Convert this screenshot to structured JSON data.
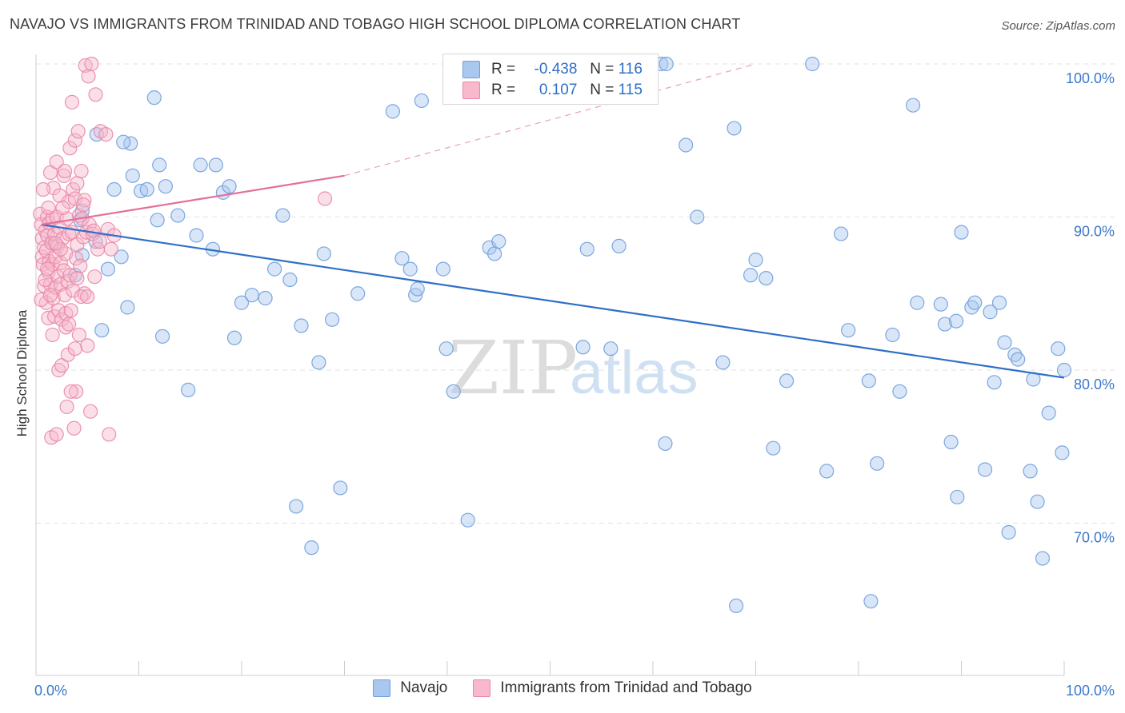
{
  "header": {
    "title": "NAVAJO VS IMMIGRANTS FROM TRINIDAD AND TOBAGO HIGH SCHOOL DIPLOMA CORRELATION CHART",
    "source": "Source: ZipAtlas.com"
  },
  "watermark": {
    "zip": "ZIP",
    "atlas": "atlas"
  },
  "legend": {
    "rows": [
      {
        "r_label": "R =",
        "r_value": "-0.438",
        "n_label": "N =",
        "n_value": "116",
        "color": "#a9c7ef",
        "border": "#6f9fdc"
      },
      {
        "r_label": "R =",
        "r_value": "0.107",
        "n_label": "N =",
        "n_value": "115",
        "color": "#f7b9cb",
        "border": "#e987a6"
      }
    ]
  },
  "bottom_legend": {
    "items": [
      "Navajo",
      "Immigrants from Trinidad and Tobago"
    ]
  },
  "chart_data": {
    "type": "scatter",
    "xlabel": "",
    "ylabel": "High School Diploma",
    "xlim": [
      0,
      100
    ],
    "ylim": [
      60.5,
      100.8
    ],
    "x_tick_labels": {
      "left": "0.0%",
      "right": "100.0%"
    },
    "y_ticks": [
      {
        "value": 100,
        "label": "100.0%"
      },
      {
        "value": 90,
        "label": "90.0%"
      },
      {
        "value": 80,
        "label": "80.0%"
      },
      {
        "value": 70,
        "label": "70.0%"
      }
    ],
    "grid": "horizontal-dashed",
    "series": [
      {
        "name": "Navajo",
        "color": "#6f9fdc",
        "fill": "#a9c7ef",
        "trend": {
          "x": [
            0.5,
            100
          ],
          "y": [
            89.5,
            79.5
          ],
          "color": "#2f6fc8"
        },
        "points": [
          [
            1.6,
            88.3
          ],
          [
            4.3,
            89.8
          ],
          [
            4.5,
            87.5
          ],
          [
            3.8,
            86.2
          ],
          [
            4.5,
            90.4
          ],
          [
            5.8,
            88.4
          ],
          [
            5.9,
            95.4
          ],
          [
            7.6,
            91.8
          ],
          [
            9.2,
            94.8
          ],
          [
            6.4,
            82.6
          ],
          [
            7.0,
            86.6
          ],
          [
            8.3,
            87.4
          ],
          [
            8.9,
            84.1
          ],
          [
            8.5,
            94.9
          ],
          [
            9.4,
            92.7
          ],
          [
            10.2,
            91.7
          ],
          [
            10.8,
            91.8
          ],
          [
            11.5,
            97.8
          ],
          [
            12.0,
            93.4
          ],
          [
            11.8,
            89.8
          ],
          [
            12.3,
            82.2
          ],
          [
            12.6,
            92.0
          ],
          [
            13.8,
            90.1
          ],
          [
            14.8,
            78.7
          ],
          [
            15.6,
            88.8
          ],
          [
            16.0,
            93.4
          ],
          [
            17.2,
            87.9
          ],
          [
            17.5,
            93.4
          ],
          [
            18.2,
            91.6
          ],
          [
            18.8,
            92.0
          ],
          [
            19.3,
            82.1
          ],
          [
            20.0,
            84.4
          ],
          [
            21.0,
            84.9
          ],
          [
            22.3,
            84.7
          ],
          [
            23.2,
            86.6
          ],
          [
            24.0,
            90.1
          ],
          [
            24.7,
            85.9
          ],
          [
            25.3,
            71.1
          ],
          [
            25.8,
            82.9
          ],
          [
            26.8,
            68.4
          ],
          [
            27.5,
            80.5
          ],
          [
            28.0,
            87.6
          ],
          [
            28.8,
            83.3
          ],
          [
            29.6,
            72.3
          ],
          [
            31.3,
            85.0
          ],
          [
            34.7,
            96.9
          ],
          [
            35.6,
            87.3
          ],
          [
            36.4,
            86.6
          ],
          [
            36.9,
            84.9
          ],
          [
            37.1,
            85.3
          ],
          [
            37.5,
            97.6
          ],
          [
            39.6,
            86.6
          ],
          [
            39.9,
            81.4
          ],
          [
            40.6,
            78.6
          ],
          [
            42.0,
            70.2
          ],
          [
            44.1,
            88.0
          ],
          [
            44.6,
            87.6
          ],
          [
            45.0,
            88.4
          ],
          [
            52.7,
            100.0
          ],
          [
            53.2,
            81.5
          ],
          [
            53.6,
            87.9
          ],
          [
            55.9,
            81.4
          ],
          [
            56.7,
            88.1
          ],
          [
            60.8,
            100.0
          ],
          [
            61.3,
            100.0
          ],
          [
            61.2,
            75.2
          ],
          [
            63.2,
            94.7
          ],
          [
            64.3,
            90.0
          ],
          [
            66.8,
            80.5
          ],
          [
            67.9,
            95.8
          ],
          [
            68.1,
            64.6
          ],
          [
            69.5,
            86.2
          ],
          [
            70.0,
            87.2
          ],
          [
            71.0,
            86.0
          ],
          [
            71.7,
            74.9
          ],
          [
            73.0,
            79.3
          ],
          [
            75.5,
            100.0
          ],
          [
            76.9,
            73.4
          ],
          [
            78.3,
            88.9
          ],
          [
            79.0,
            82.6
          ],
          [
            81.0,
            79.3
          ],
          [
            81.2,
            64.9
          ],
          [
            81.8,
            73.9
          ],
          [
            83.3,
            82.3
          ],
          [
            84.0,
            78.6
          ],
          [
            85.3,
            97.3
          ],
          [
            85.7,
            84.4
          ],
          [
            88.0,
            84.3
          ],
          [
            88.4,
            83.0
          ],
          [
            89.0,
            75.3
          ],
          [
            89.5,
            83.2
          ],
          [
            89.6,
            71.7
          ],
          [
            90.0,
            89.0
          ],
          [
            91.0,
            84.1
          ],
          [
            91.3,
            84.4
          ],
          [
            92.3,
            73.5
          ],
          [
            92.8,
            83.8
          ],
          [
            93.2,
            79.2
          ],
          [
            93.7,
            84.4
          ],
          [
            94.2,
            81.8
          ],
          [
            94.6,
            69.4
          ],
          [
            95.2,
            81.0
          ],
          [
            95.5,
            80.7
          ],
          [
            96.7,
            73.4
          ],
          [
            97.0,
            79.4
          ],
          [
            97.4,
            71.4
          ],
          [
            97.9,
            67.7
          ],
          [
            98.5,
            77.2
          ],
          [
            99.4,
            81.4
          ],
          [
            99.8,
            74.6
          ],
          [
            100.0,
            80.0
          ]
        ]
      },
      {
        "name": "Immigrants from Trinidad and Tobago",
        "color": "#e987a6",
        "fill": "#f7b9cb",
        "trend": {
          "x": [
            0.5,
            30
          ],
          "y": [
            89.5,
            92.7
          ],
          "color": "#e56f98",
          "dash_to": [
            70,
            100.0
          ]
        },
        "points": [
          [
            0.4,
            90.2
          ],
          [
            0.5,
            89.5
          ],
          [
            0.6,
            88.6
          ],
          [
            0.6,
            87.4
          ],
          [
            0.7,
            86.9
          ],
          [
            0.8,
            88.0
          ],
          [
            0.8,
            85.5
          ],
          [
            0.9,
            89.1
          ],
          [
            1.0,
            87.8
          ],
          [
            1.0,
            84.4
          ],
          [
            1.1,
            90.0
          ],
          [
            1.1,
            88.8
          ],
          [
            1.2,
            86.4
          ],
          [
            1.2,
            83.4
          ],
          [
            1.3,
            89.6
          ],
          [
            1.3,
            87.1
          ],
          [
            1.4,
            85.6
          ],
          [
            1.4,
            92.9
          ],
          [
            1.5,
            88.3
          ],
          [
            1.5,
            75.6
          ],
          [
            1.6,
            89.9
          ],
          [
            1.6,
            86.9
          ],
          [
            1.7,
            84.7
          ],
          [
            1.7,
            91.9
          ],
          [
            1.8,
            88.9
          ],
          [
            1.8,
            83.5
          ],
          [
            1.9,
            87.4
          ],
          [
            1.9,
            85.4
          ],
          [
            2.0,
            90.0
          ],
          [
            2.0,
            93.6
          ],
          [
            2.1,
            88.1
          ],
          [
            2.1,
            86.1
          ],
          [
            2.2,
            83.9
          ],
          [
            2.2,
            80.0
          ],
          [
            2.3,
            89.3
          ],
          [
            2.3,
            91.4
          ],
          [
            2.4,
            87.0
          ],
          [
            2.4,
            85.6
          ],
          [
            2.5,
            83.3
          ],
          [
            2.5,
            80.3
          ],
          [
            2.6,
            88.6
          ],
          [
            2.7,
            92.7
          ],
          [
            2.7,
            86.5
          ],
          [
            2.8,
            84.9
          ],
          [
            2.8,
            93.0
          ],
          [
            2.9,
            87.6
          ],
          [
            2.9,
            83.7
          ],
          [
            3.0,
            89.9
          ],
          [
            3.0,
            77.6
          ],
          [
            3.1,
            85.8
          ],
          [
            3.1,
            81.0
          ],
          [
            3.2,
            91.0
          ],
          [
            3.2,
            88.9
          ],
          [
            3.3,
            94.5
          ],
          [
            3.3,
            86.2
          ],
          [
            3.4,
            83.9
          ],
          [
            3.5,
            97.5
          ],
          [
            3.5,
            89.0
          ],
          [
            3.6,
            91.8
          ],
          [
            3.6,
            85.2
          ],
          [
            3.7,
            76.2
          ],
          [
            3.8,
            95.0
          ],
          [
            3.8,
            91.2
          ],
          [
            3.9,
            87.3
          ],
          [
            3.9,
            78.6
          ],
          [
            4.0,
            92.2
          ],
          [
            4.0,
            88.2
          ],
          [
            4.1,
            95.6
          ],
          [
            4.2,
            90.1
          ],
          [
            4.2,
            82.3
          ],
          [
            4.3,
            86.8
          ],
          [
            4.4,
            93.0
          ],
          [
            4.5,
            89.9
          ],
          [
            4.6,
            88.7
          ],
          [
            4.7,
            91.1
          ],
          [
            4.7,
            85.0
          ],
          [
            4.8,
            99.9
          ],
          [
            4.9,
            89.0
          ],
          [
            5.0,
            81.6
          ],
          [
            5.1,
            99.2
          ],
          [
            5.2,
            89.5
          ],
          [
            5.3,
            77.3
          ],
          [
            5.4,
            100.0
          ],
          [
            5.5,
            88.9
          ],
          [
            5.7,
            86.1
          ],
          [
            5.8,
            98.0
          ],
          [
            6.0,
            87.9
          ],
          [
            6.3,
            95.6
          ],
          [
            6.8,
            95.4
          ],
          [
            7.0,
            89.2
          ],
          [
            7.1,
            75.8
          ],
          [
            7.3,
            87.9
          ],
          [
            7.6,
            88.8
          ],
          [
            28.1,
            91.2
          ],
          [
            0.5,
            84.6
          ],
          [
            0.9,
            85.9
          ],
          [
            1.2,
            90.6
          ],
          [
            1.6,
            82.3
          ],
          [
            2.0,
            75.8
          ],
          [
            2.4,
            87.9
          ],
          [
            2.9,
            82.8
          ],
          [
            3.4,
            78.6
          ],
          [
            3.8,
            81.4
          ],
          [
            4.4,
            84.8
          ],
          [
            0.7,
            91.8
          ],
          [
            1.1,
            86.6
          ],
          [
            1.9,
            88.3
          ],
          [
            2.6,
            90.6
          ],
          [
            3.2,
            83.0
          ],
          [
            4.0,
            86.0
          ],
          [
            4.6,
            90.8
          ],
          [
            5.0,
            84.8
          ],
          [
            5.6,
            89.1
          ],
          [
            6.2,
            88.4
          ],
          [
            1.4,
            84.9
          ]
        ]
      }
    ]
  }
}
